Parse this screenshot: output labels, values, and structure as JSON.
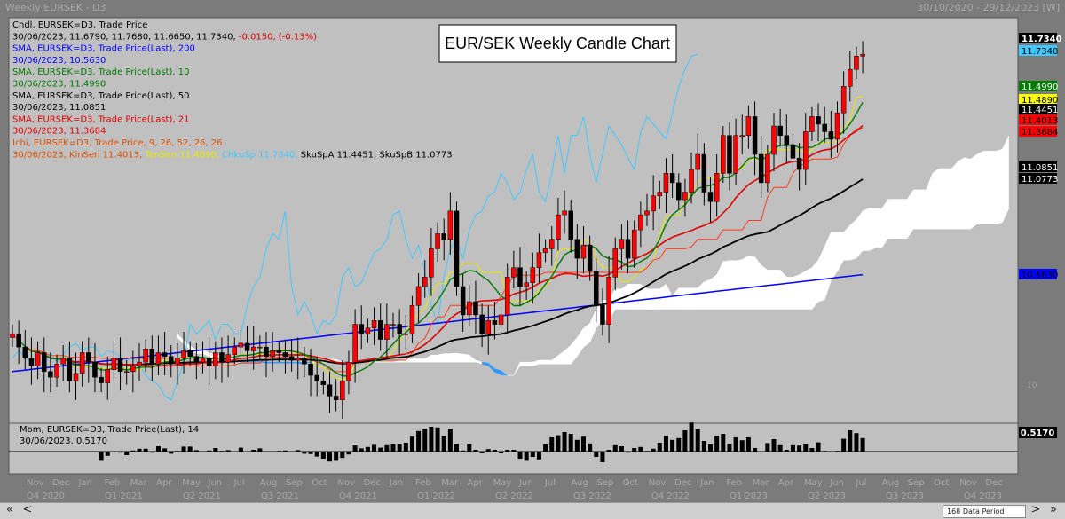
{
  "window": {
    "title": "Weekly EURSEK - D3",
    "date_range": "30/10/2020 - 29/12/2023 [W]"
  },
  "chart_title": "EUR/SEK Weekly Candle Chart",
  "legend": [
    {
      "text": "Cndl, EURSEK=D3, Trade Price",
      "color": "#000000"
    },
    {
      "segments": [
        {
          "text": "30/06/2023, 11.6790, 11.7680, 11.6650, 11.7340, ",
          "color": "#000000"
        },
        {
          "text": "-0.0150, (-0.13%)",
          "color": "#e00000"
        }
      ]
    },
    {
      "text": "SMA, EURSEK=D3, Trade Price(Last),  200",
      "color": "#0000ff"
    },
    {
      "text": "30/06/2023, 10.5630",
      "color": "#0000ff"
    },
    {
      "text": "SMA, EURSEK=D3, Trade Price(Last),  10",
      "color": "#007a00"
    },
    {
      "text": "30/06/2023, 11.4990",
      "color": "#007a00"
    },
    {
      "text": "SMA, EURSEK=D3, Trade Price(Last),  50",
      "color": "#000000"
    },
    {
      "text": "30/06/2023, 11.0851",
      "color": "#000000"
    },
    {
      "text": "SMA, EURSEK=D3, Trade Price(Last),  21",
      "color": "#e00000"
    },
    {
      "text": "30/06/2023, 11.3684",
      "color": "#e00000"
    },
    {
      "text": "Ichi, EURSEK=D3, Trade Price,  9, 26, 52, 26, 26",
      "color": "#e05000"
    },
    {
      "segments": [
        {
          "text": "30/06/2023, KinSen 11.4013, ",
          "color": "#e05000"
        },
        {
          "text": "TenSen 11.4890, ",
          "color": "#e8e800"
        },
        {
          "text": "ChkuSp 11.7340, ",
          "color": "#40c8ff"
        },
        {
          "text": "SkuSpA 11.4451, SkuSpB 11.0773",
          "color": "#000000"
        }
      ]
    }
  ],
  "price_labels": [
    {
      "text": "11.7340",
      "bg": "#000000",
      "fg": "#ffffff",
      "bold": true
    },
    {
      "text": "11.7340",
      "bg": "#40c8ff",
      "fg": "#000000"
    },
    {
      "text": "11.4990",
      "bg": "#007a00",
      "fg": "#ffffff"
    },
    {
      "text": "11.4890",
      "bg": "#ffff00",
      "fg": "#000000"
    },
    {
      "text": "11.4451",
      "bg": "#000000",
      "fg": "#ffffff"
    },
    {
      "text": "11.4013",
      "bg": "#ff0000",
      "fg": "#000000"
    },
    {
      "text": "11.3684",
      "bg": "#ff0000",
      "fg": "#000000"
    },
    {
      "text": "11.0851",
      "bg": "#000000",
      "fg": "#ffffff"
    },
    {
      "text": "11.0773",
      "bg": "#000000",
      "fg": "#ffffff"
    },
    {
      "text": "10.5630",
      "bg": "#0000ff",
      "fg": "#000000"
    }
  ],
  "axis_ticks": [
    {
      "text": "10"
    }
  ],
  "mom_legend": {
    "line1": "Mom, EURSEK=D3, Trade Price(Last),  14",
    "line2": "30/06/2023, 0.5170",
    "value_label": "0.5170"
  },
  "months": [
    "Nov",
    "Dec",
    "Jan",
    "Feb",
    "Mar",
    "Apr",
    "May",
    "Jun",
    "Jul",
    "Aug",
    "Sep",
    "Oct",
    "Nov",
    "Dec",
    "Jan",
    "Feb",
    "Mar",
    "Apr",
    "May",
    "Jun",
    "Jul",
    "Aug",
    "Sep",
    "Oct",
    "Nov",
    "Dec",
    "Jan",
    "Feb",
    "Mar",
    "Apr",
    "May",
    "Jun",
    "Jul",
    "Aug",
    "Sep",
    "Oct",
    "Nov",
    "Dec"
  ],
  "quarters": [
    "Q4 2020",
    "Q1 2021",
    "Q2 2021",
    "Q3 2021",
    "Q4 2021",
    "Q1 2022",
    "Q2 2022",
    "Q3 2022",
    "Q4 2022",
    "Q1 2023",
    "Q2 2023",
    "Q3 2023",
    "Q4 2023"
  ],
  "scrollbar": {
    "left": "«",
    "prev": "<",
    "next": ">",
    "right": "»",
    "period": "168 Data Period"
  },
  "chart_data": {
    "type": "candlestick",
    "title": "EUR/SEK Weekly Candle Chart",
    "interval": "weekly",
    "x_start": "2020-10-30",
    "last_bar": "2023-06-30",
    "last_ohlc": {
      "open": 11.679,
      "high": 11.768,
      "low": 11.665,
      "close": 11.734,
      "change": -0.015,
      "change_pct": -0.13
    },
    "close": [
      10.25,
      10.18,
      10.12,
      10.08,
      10.15,
      10.05,
      10.02,
      10.09,
      10.12,
      10.0,
      10.04,
      10.15,
      10.1,
      10.02,
      9.99,
      10.06,
      10.12,
      10.05,
      10.05,
      10.08,
      10.1,
      10.17,
      10.09,
      10.15,
      10.13,
      10.09,
      10.12,
      10.16,
      10.13,
      10.1,
      10.12,
      10.08,
      10.15,
      10.1,
      10.14,
      10.18,
      10.2,
      10.16,
      10.18,
      10.18,
      10.13,
      10.16,
      10.15,
      10.13,
      10.11,
      10.12,
      10.09,
      10.03,
      10.0,
      9.98,
      9.92,
      9.9,
      10.0,
      10.1,
      10.3,
      10.25,
      10.28,
      10.32,
      10.22,
      10.3,
      10.3,
      10.25,
      10.25,
      10.4,
      10.5,
      10.55,
      10.7,
      10.78,
      10.75,
      10.9,
      10.5,
      10.35,
      10.42,
      10.35,
      10.25,
      10.32,
      10.3,
      10.35,
      10.55,
      10.6,
      10.5,
      10.52,
      10.6,
      10.68,
      10.7,
      10.75,
      10.88,
      10.9,
      10.75,
      10.65,
      10.72,
      10.58,
      10.4,
      10.3,
      10.55,
      10.7,
      10.75,
      10.65,
      10.8,
      10.88,
      10.9,
      10.98,
      11.0,
      11.1,
      11.05,
      10.96,
      11.0,
      11.12,
      11.2,
      11.0,
      10.95,
      11.1,
      11.3,
      11.1,
      11.3,
      11.3,
      11.4,
      11.2,
      11.05,
      11.2,
      11.35,
      11.3,
      11.25,
      11.18,
      11.12,
      11.32,
      11.4,
      11.36,
      11.32,
      11.28,
      11.42,
      11.56,
      11.65,
      11.72,
      11.73
    ],
    "series": [
      {
        "name": "SMA 200",
        "last": 10.563
      },
      {
        "name": "SMA 10",
        "last": 11.499
      },
      {
        "name": "SMA 50",
        "last": 11.0851
      },
      {
        "name": "SMA 21",
        "last": 11.3684
      },
      {
        "name": "KinSen",
        "last": 11.4013
      },
      {
        "name": "TenSen",
        "last": 11.489
      },
      {
        "name": "ChkuSp",
        "last": 11.734
      },
      {
        "name": "SkuSpA",
        "last": 11.4451
      },
      {
        "name": "SkuSpB",
        "last": 11.0773
      }
    ],
    "momentum": {
      "name": "Mom 14",
      "last": 0.517
    },
    "ylim": [
      9.8,
      11.9
    ],
    "grid": false,
    "legend_position": "top-left"
  }
}
